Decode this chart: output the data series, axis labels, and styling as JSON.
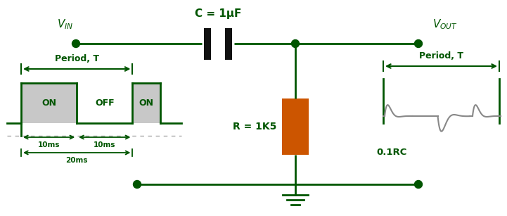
{
  "bg_color": "#ffffff",
  "cc": "#005500",
  "cap_color": "#111111",
  "res_color": "#CC5500",
  "gray_wave": "#888888",
  "fig_width": 7.21,
  "fig_height": 3.07,
  "cap_label": "C = 1μF",
  "res_label": "R = 1K5",
  "period_label": "Period, T",
  "on_label": "ON",
  "off_label": "OFF",
  "ms10_label": "10ms",
  "ms20_label": "20ms",
  "rc_label": "0.1RC",
  "node_r": 0.055,
  "lw": 2.0
}
